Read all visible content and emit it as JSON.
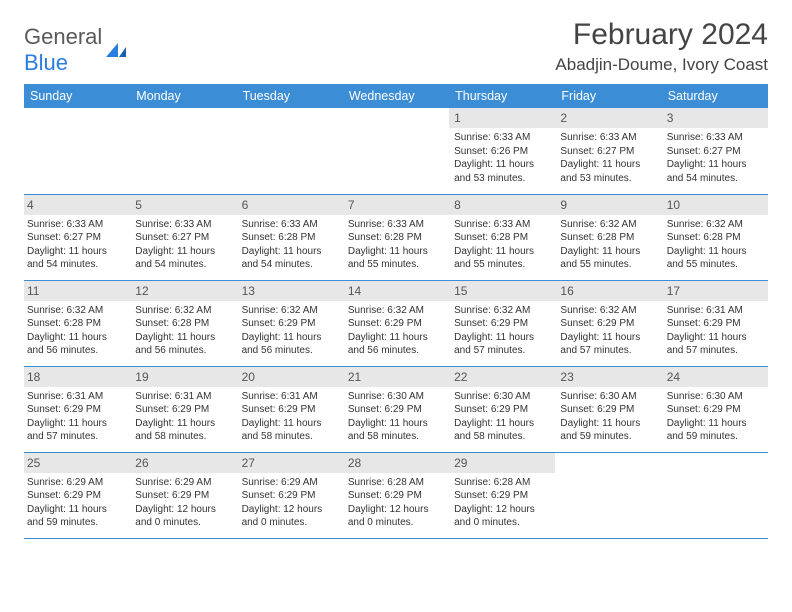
{
  "logo": {
    "text_general": "General",
    "text_blue": "Blue"
  },
  "title": "February 2024",
  "location": "Abadjin-Doume, Ivory Coast",
  "colors": {
    "header_bg": "#3b8dd6",
    "header_text": "#ffffff",
    "daynum_bg": "#e7e7e7",
    "border": "#3b8dd6",
    "body_text": "#333333",
    "logo_blue": "#2a7de0",
    "logo_gray": "#5a5a5a"
  },
  "weekdays": [
    "Sunday",
    "Monday",
    "Tuesday",
    "Wednesday",
    "Thursday",
    "Friday",
    "Saturday"
  ],
  "weeks": [
    [
      {
        "n": "",
        "sr": "",
        "ss": "",
        "dl": ""
      },
      {
        "n": "",
        "sr": "",
        "ss": "",
        "dl": ""
      },
      {
        "n": "",
        "sr": "",
        "ss": "",
        "dl": ""
      },
      {
        "n": "",
        "sr": "",
        "ss": "",
        "dl": ""
      },
      {
        "n": "1",
        "sr": "Sunrise: 6:33 AM",
        "ss": "Sunset: 6:26 PM",
        "dl": "Daylight: 11 hours and 53 minutes."
      },
      {
        "n": "2",
        "sr": "Sunrise: 6:33 AM",
        "ss": "Sunset: 6:27 PM",
        "dl": "Daylight: 11 hours and 53 minutes."
      },
      {
        "n": "3",
        "sr": "Sunrise: 6:33 AM",
        "ss": "Sunset: 6:27 PM",
        "dl": "Daylight: 11 hours and 54 minutes."
      }
    ],
    [
      {
        "n": "4",
        "sr": "Sunrise: 6:33 AM",
        "ss": "Sunset: 6:27 PM",
        "dl": "Daylight: 11 hours and 54 minutes."
      },
      {
        "n": "5",
        "sr": "Sunrise: 6:33 AM",
        "ss": "Sunset: 6:27 PM",
        "dl": "Daylight: 11 hours and 54 minutes."
      },
      {
        "n": "6",
        "sr": "Sunrise: 6:33 AM",
        "ss": "Sunset: 6:28 PM",
        "dl": "Daylight: 11 hours and 54 minutes."
      },
      {
        "n": "7",
        "sr": "Sunrise: 6:33 AM",
        "ss": "Sunset: 6:28 PM",
        "dl": "Daylight: 11 hours and 55 minutes."
      },
      {
        "n": "8",
        "sr": "Sunrise: 6:33 AM",
        "ss": "Sunset: 6:28 PM",
        "dl": "Daylight: 11 hours and 55 minutes."
      },
      {
        "n": "9",
        "sr": "Sunrise: 6:32 AM",
        "ss": "Sunset: 6:28 PM",
        "dl": "Daylight: 11 hours and 55 minutes."
      },
      {
        "n": "10",
        "sr": "Sunrise: 6:32 AM",
        "ss": "Sunset: 6:28 PM",
        "dl": "Daylight: 11 hours and 55 minutes."
      }
    ],
    [
      {
        "n": "11",
        "sr": "Sunrise: 6:32 AM",
        "ss": "Sunset: 6:28 PM",
        "dl": "Daylight: 11 hours and 56 minutes."
      },
      {
        "n": "12",
        "sr": "Sunrise: 6:32 AM",
        "ss": "Sunset: 6:28 PM",
        "dl": "Daylight: 11 hours and 56 minutes."
      },
      {
        "n": "13",
        "sr": "Sunrise: 6:32 AM",
        "ss": "Sunset: 6:29 PM",
        "dl": "Daylight: 11 hours and 56 minutes."
      },
      {
        "n": "14",
        "sr": "Sunrise: 6:32 AM",
        "ss": "Sunset: 6:29 PM",
        "dl": "Daylight: 11 hours and 56 minutes."
      },
      {
        "n": "15",
        "sr": "Sunrise: 6:32 AM",
        "ss": "Sunset: 6:29 PM",
        "dl": "Daylight: 11 hours and 57 minutes."
      },
      {
        "n": "16",
        "sr": "Sunrise: 6:32 AM",
        "ss": "Sunset: 6:29 PM",
        "dl": "Daylight: 11 hours and 57 minutes."
      },
      {
        "n": "17",
        "sr": "Sunrise: 6:31 AM",
        "ss": "Sunset: 6:29 PM",
        "dl": "Daylight: 11 hours and 57 minutes."
      }
    ],
    [
      {
        "n": "18",
        "sr": "Sunrise: 6:31 AM",
        "ss": "Sunset: 6:29 PM",
        "dl": "Daylight: 11 hours and 57 minutes."
      },
      {
        "n": "19",
        "sr": "Sunrise: 6:31 AM",
        "ss": "Sunset: 6:29 PM",
        "dl": "Daylight: 11 hours and 58 minutes."
      },
      {
        "n": "20",
        "sr": "Sunrise: 6:31 AM",
        "ss": "Sunset: 6:29 PM",
        "dl": "Daylight: 11 hours and 58 minutes."
      },
      {
        "n": "21",
        "sr": "Sunrise: 6:30 AM",
        "ss": "Sunset: 6:29 PM",
        "dl": "Daylight: 11 hours and 58 minutes."
      },
      {
        "n": "22",
        "sr": "Sunrise: 6:30 AM",
        "ss": "Sunset: 6:29 PM",
        "dl": "Daylight: 11 hours and 58 minutes."
      },
      {
        "n": "23",
        "sr": "Sunrise: 6:30 AM",
        "ss": "Sunset: 6:29 PM",
        "dl": "Daylight: 11 hours and 59 minutes."
      },
      {
        "n": "24",
        "sr": "Sunrise: 6:30 AM",
        "ss": "Sunset: 6:29 PM",
        "dl": "Daylight: 11 hours and 59 minutes."
      }
    ],
    [
      {
        "n": "25",
        "sr": "Sunrise: 6:29 AM",
        "ss": "Sunset: 6:29 PM",
        "dl": "Daylight: 11 hours and 59 minutes."
      },
      {
        "n": "26",
        "sr": "Sunrise: 6:29 AM",
        "ss": "Sunset: 6:29 PM",
        "dl": "Daylight: 12 hours and 0 minutes."
      },
      {
        "n": "27",
        "sr": "Sunrise: 6:29 AM",
        "ss": "Sunset: 6:29 PM",
        "dl": "Daylight: 12 hours and 0 minutes."
      },
      {
        "n": "28",
        "sr": "Sunrise: 6:28 AM",
        "ss": "Sunset: 6:29 PM",
        "dl": "Daylight: 12 hours and 0 minutes."
      },
      {
        "n": "29",
        "sr": "Sunrise: 6:28 AM",
        "ss": "Sunset: 6:29 PM",
        "dl": "Daylight: 12 hours and 0 minutes."
      },
      {
        "n": "",
        "sr": "",
        "ss": "",
        "dl": ""
      },
      {
        "n": "",
        "sr": "",
        "ss": "",
        "dl": ""
      }
    ]
  ]
}
